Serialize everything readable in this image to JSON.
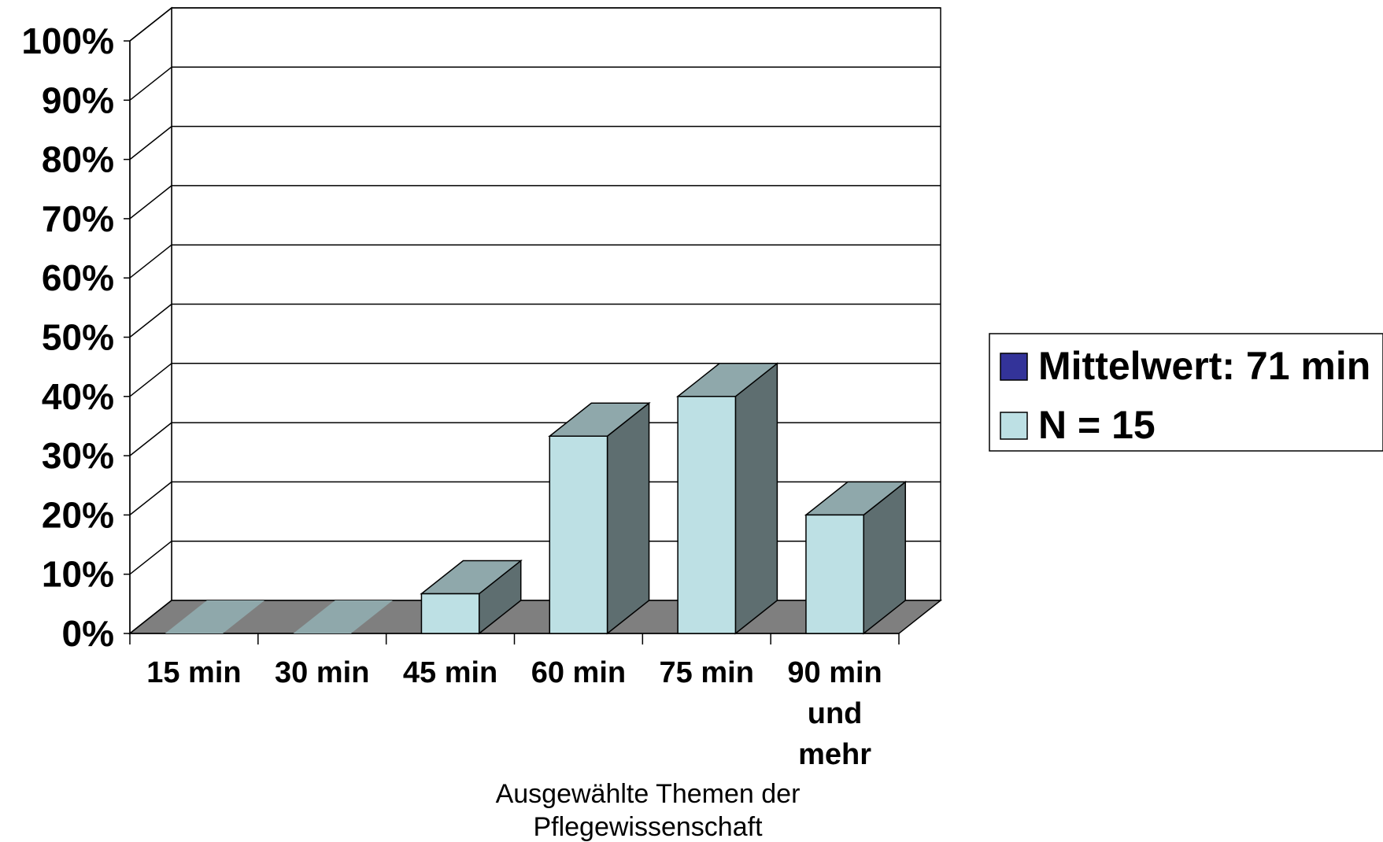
{
  "colors": {
    "bar_front": "#bde0e4",
    "bar_top": "#8fa8ab",
    "bar_side": "#5e6e70",
    "floor": "#7f7f7f",
    "floor_zero_bar": "#8fa8ab",
    "legend_mittelwert": "#333399",
    "legend_n": "#bde0e4"
  },
  "chart_data": {
    "type": "bar",
    "categories": [
      "15 min",
      "30 min",
      "45 min",
      "60 min",
      "75 min",
      "90 min und mehr"
    ],
    "category_lines": [
      [
        "15 min"
      ],
      [
        "30 min"
      ],
      [
        "45 min"
      ],
      [
        "60 min"
      ],
      [
        "75 min"
      ],
      [
        "90 min",
        "und",
        "mehr"
      ]
    ],
    "series": [
      {
        "name": "N = 15",
        "values": [
          0,
          0,
          6.7,
          33.3,
          40,
          20
        ]
      }
    ],
    "legend": [
      {
        "label": "Mittelwert: 71 min",
        "color_key": "legend_mittelwert"
      },
      {
        "label": "N = 15",
        "color_key": "legend_n"
      }
    ],
    "y_ticks": [
      "0%",
      "10%",
      "20%",
      "30%",
      "40%",
      "50%",
      "60%",
      "70%",
      "80%",
      "90%",
      "100%"
    ],
    "xlabel_lines": [
      "Ausgewählte Themen der",
      "Pflegewissenschaft"
    ],
    "ylim": [
      0,
      100
    ],
    "unit": "%",
    "grid": true,
    "three_d": true,
    "legend_position": "right"
  }
}
